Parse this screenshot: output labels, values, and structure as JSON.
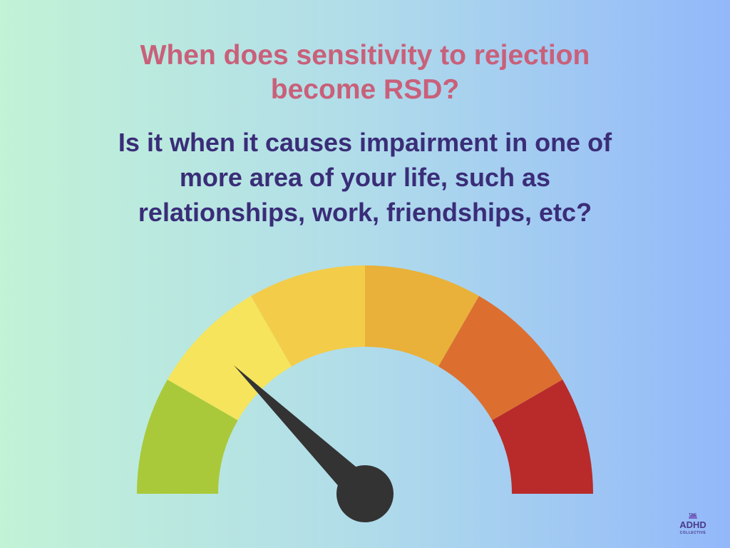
{
  "title": [
    "When does sensitivity to rejection",
    "become RSD?"
  ],
  "question": [
    "Is it when it causes impairment in one of",
    "more area of your life, such as",
    "relationships, work, friendships, etc?"
  ],
  "logo": {
    "top": "THE",
    "name": "ADHD",
    "bottom": "COLLECTIVE"
  }
}
